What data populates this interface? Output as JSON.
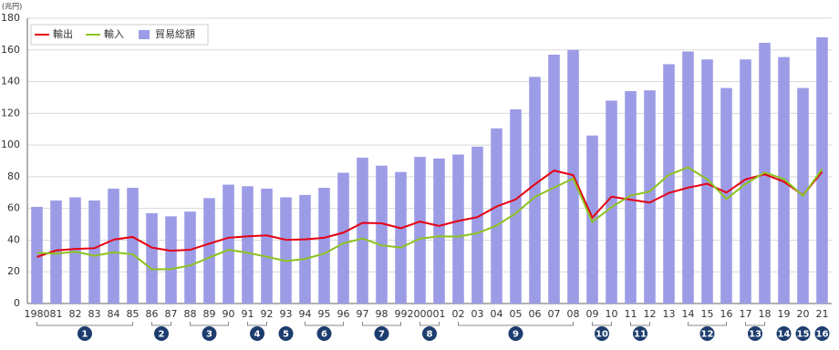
{
  "chart_data": {
    "type": "bar",
    "unit": "(兆円)",
    "categories": [
      "1980",
      "81",
      "82",
      "83",
      "84",
      "85",
      "86",
      "87",
      "88",
      "89",
      "90",
      "91",
      "92",
      "93",
      "94",
      "95",
      "96",
      "97",
      "98",
      "99",
      "2000",
      "01",
      "02",
      "03",
      "04",
      "05",
      "06",
      "07",
      "08",
      "09",
      "10",
      "11",
      "12",
      "13",
      "14",
      "15",
      "16",
      "17",
      "18",
      "19",
      "20",
      "21"
    ],
    "series": [
      {
        "name": "輸出",
        "type": "line",
        "color": "#e60012",
        "values": [
          29.4,
          33.5,
          34.4,
          34.9,
          40.3,
          42.0,
          35.3,
          33.3,
          33.9,
          37.8,
          41.5,
          42.4,
          43.0,
          40.2,
          40.5,
          41.5,
          44.7,
          50.9,
          50.6,
          47.5,
          51.7,
          49.0,
          52.1,
          54.5,
          61.2,
          65.7,
          75.2,
          83.9,
          81.0,
          54.2,
          67.4,
          65.5,
          63.7,
          69.8,
          73.1,
          75.6,
          70.0,
          78.3,
          81.5,
          76.9,
          68.4,
          83.1
        ]
      },
      {
        "name": "輸入",
        "type": "line",
        "color": "#8dc21f",
        "values": [
          32.0,
          31.5,
          32.7,
          30.1,
          32.3,
          31.1,
          21.6,
          21.7,
          24.0,
          29.0,
          33.9,
          32.0,
          29.5,
          26.8,
          28.1,
          31.5,
          38.0,
          41.0,
          36.7,
          35.3,
          40.9,
          42.4,
          42.2,
          44.4,
          49.2,
          56.9,
          67.3,
          73.1,
          78.9,
          51.5,
          60.8,
          68.1,
          70.7,
          81.2,
          85.9,
          78.4,
          66.0,
          75.4,
          82.7,
          78.6,
          68.0,
          84.9
        ]
      },
      {
        "name": "貿易総額",
        "type": "bar",
        "color": "#9c9ce6",
        "values": [
          61,
          65,
          67,
          65,
          72.5,
          73,
          57,
          55,
          58,
          66.5,
          75,
          74,
          72.5,
          67,
          68.5,
          73,
          82.5,
          92,
          87,
          83,
          92.5,
          91.5,
          94,
          99,
          110.5,
          122.5,
          143,
          157,
          160,
          106,
          128,
          134,
          134.5,
          151,
          159,
          154,
          136,
          154,
          164.5,
          155.5,
          136,
          168
        ]
      }
    ],
    "ylim": [
      0,
      180
    ],
    "yticks": [
      0,
      20,
      40,
      60,
      80,
      100,
      120,
      140,
      160,
      180
    ],
    "grid": true,
    "legend": "top-left",
    "periods": [
      {
        "label": "1",
        "from": "1980",
        "to": "85"
      },
      {
        "label": "2",
        "from": "86",
        "to": "87"
      },
      {
        "label": "3",
        "from": "88",
        "to": "90"
      },
      {
        "label": "4",
        "from": "91",
        "to": "92"
      },
      {
        "label": "5",
        "from": "93",
        "to": "93"
      },
      {
        "label": "6",
        "from": "94",
        "to": "96"
      },
      {
        "label": "7",
        "from": "97",
        "to": "99"
      },
      {
        "label": "8",
        "from": "2000",
        "to": "01"
      },
      {
        "label": "9",
        "from": "02",
        "to": "08"
      },
      {
        "label": "10",
        "from": "09",
        "to": "10"
      },
      {
        "label": "11",
        "from": "11",
        "to": "12"
      },
      {
        "label": "12",
        "from": "14",
        "to": "16"
      },
      {
        "label": "13",
        "from": "17",
        "to": "18"
      },
      {
        "label": "14",
        "from": "19",
        "to": "19"
      },
      {
        "label": "15",
        "from": "20",
        "to": "20"
      },
      {
        "label": "16",
        "from": "21",
        "to": "21"
      }
    ]
  }
}
